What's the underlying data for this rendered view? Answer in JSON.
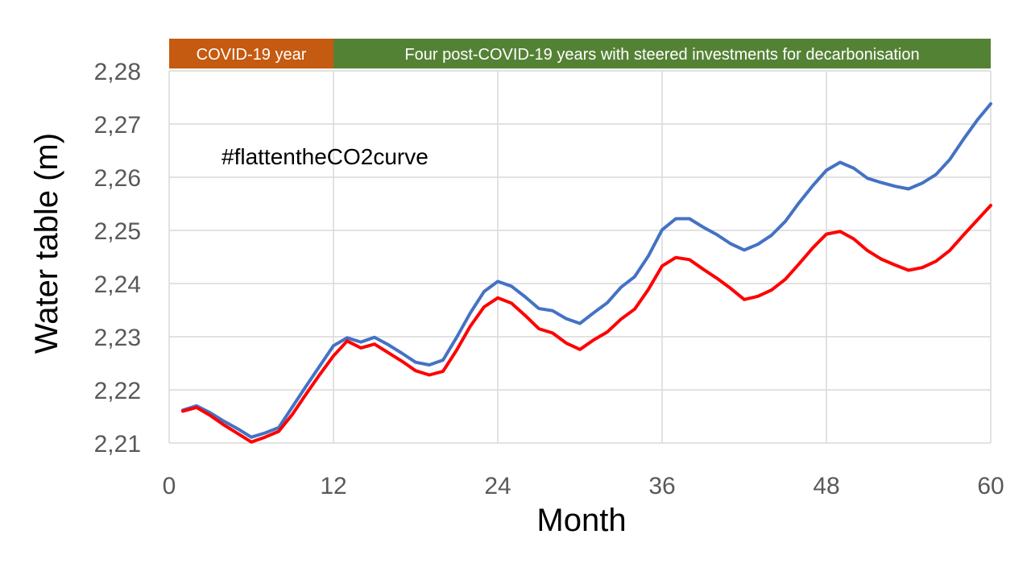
{
  "colors": {
    "covid_band": "#c55a11",
    "post_covid_band": "#548235",
    "series_blue": "#4472c4",
    "series_red": "#ff0000",
    "grid": "#d9d9d9",
    "tick_text": "#595959"
  },
  "chart_data": {
    "type": "line",
    "title": "",
    "xlabel": "Month",
    "ylabel": "Water table (m)",
    "xlim": [
      0,
      60
    ],
    "ylim": [
      2.21,
      2.28
    ],
    "x_ticks": [
      0,
      12,
      24,
      36,
      48,
      60
    ],
    "x_tick_labels": [
      "0",
      "12",
      "24",
      "36",
      "48",
      "60"
    ],
    "y_ticks": [
      2.21,
      2.22,
      2.23,
      2.24,
      2.25,
      2.26,
      2.27,
      2.28
    ],
    "y_tick_labels": [
      "2,21",
      "2,22",
      "2,23",
      "2,24",
      "2,25",
      "2,26",
      "2,27",
      "2,28"
    ],
    "grid": true,
    "legend": "none",
    "annotation": "#flattentheCO2curve",
    "bands": [
      {
        "label": "COVID-19 year",
        "x_start": 0,
        "x_end": 12,
        "color_key": "covid_band"
      },
      {
        "label": "Four post-COVID-19 years with steered investments for decarbonisation",
        "x_start": 12,
        "x_end": 60,
        "color_key": "post_covid_band"
      }
    ],
    "x": [
      1,
      2,
      3,
      4,
      5,
      6,
      7,
      8,
      9,
      10,
      11,
      12,
      13,
      14,
      15,
      16,
      17,
      18,
      19,
      20,
      21,
      22,
      23,
      24,
      25,
      26,
      27,
      28,
      29,
      30,
      31,
      32,
      33,
      34,
      35,
      36,
      37,
      38,
      39,
      40,
      41,
      42,
      43,
      44,
      45,
      46,
      47,
      48,
      49,
      50,
      51,
      52,
      53,
      54,
      55,
      56,
      57,
      58,
      59,
      60
    ],
    "series": [
      {
        "color_key": "series_blue",
        "values": [
          2.2162,
          2.217,
          2.2157,
          2.2141,
          2.2127,
          2.2111,
          2.2119,
          2.2129,
          2.2168,
          2.2207,
          2.2245,
          2.2283,
          2.2298,
          2.229,
          2.2299,
          2.2285,
          2.2269,
          2.2252,
          2.2247,
          2.2256,
          2.2299,
          2.2345,
          2.2385,
          2.2404,
          2.2395,
          2.2375,
          2.2353,
          2.2349,
          2.2334,
          2.2325,
          2.2345,
          2.2364,
          2.2393,
          2.2413,
          2.2452,
          2.2501,
          2.2522,
          2.2522,
          2.2506,
          2.2492,
          2.2475,
          2.2463,
          2.2474,
          2.2491,
          2.2517,
          2.2552,
          2.2584,
          2.2613,
          2.2628,
          2.2617,
          2.2598,
          2.259,
          2.2583,
          2.2578,
          2.2589,
          2.2605,
          2.2633,
          2.2671,
          2.2707,
          2.2738
        ]
      },
      {
        "color_key": "series_red",
        "values": [
          2.216,
          2.2167,
          2.2152,
          2.2134,
          2.2118,
          2.2102,
          2.2111,
          2.2122,
          2.2154,
          2.2192,
          2.2229,
          2.2264,
          2.2292,
          2.2279,
          2.2286,
          2.227,
          2.2254,
          2.2236,
          2.2228,
          2.2235,
          2.2275,
          2.232,
          2.2356,
          2.2373,
          2.2363,
          2.234,
          2.2315,
          2.2307,
          2.2288,
          2.2276,
          2.2294,
          2.2309,
          2.2333,
          2.2352,
          2.2389,
          2.2433,
          2.2449,
          2.2445,
          2.2427,
          2.241,
          2.2391,
          2.237,
          2.2376,
          2.2388,
          2.2408,
          2.2437,
          2.2467,
          2.2493,
          2.2498,
          2.2484,
          2.2462,
          2.2446,
          2.2435,
          2.2425,
          2.243,
          2.2442,
          2.2462,
          2.2491,
          2.2519,
          2.2547
        ]
      }
    ]
  }
}
